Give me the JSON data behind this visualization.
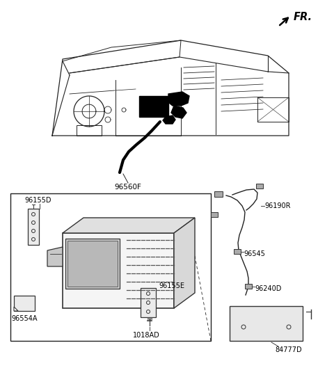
{
  "bg_color": "#ffffff",
  "fig_width": 4.8,
  "fig_height": 5.29,
  "dpi": 100,
  "labels": {
    "FR": "FR.",
    "96560F": "96560F",
    "96155D": "96155D",
    "96155E": "96155E",
    "96554A": "96554A",
    "1018AD": "1018AD",
    "96190R": "96190R",
    "96545": "96545",
    "96240D": "96240D",
    "84777D": "84777D"
  },
  "lfs": 7.0,
  "fr_fontsize": 10.5,
  "line_color": "#222222",
  "part_edge": "#333333"
}
